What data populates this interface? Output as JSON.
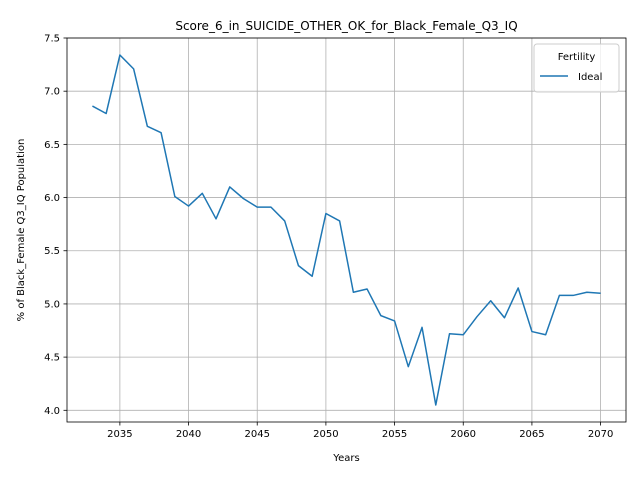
{
  "chart_data": {
    "type": "line",
    "title": "Score_6_in_SUICIDE_OTHER_OK_for_Black_Female_Q3_IQ",
    "xlabel": "Years",
    "ylabel": "% of Black_Female Q3_IQ Population",
    "xlim": [
      2031.15,
      2071.85
    ],
    "ylim": [
      3.89,
      7.5
    ],
    "xticks": [
      2035,
      2040,
      2045,
      2050,
      2055,
      2060,
      2065,
      2070
    ],
    "xtick_labels": [
      "2035",
      "2040",
      "2045",
      "2050",
      "2055",
      "2060",
      "2065",
      "2070"
    ],
    "yticks": [
      4.0,
      4.5,
      5.0,
      5.5,
      6.0,
      6.5,
      7.0,
      7.5
    ],
    "ytick_labels": [
      "4.0",
      "4.5",
      "5.0",
      "5.5",
      "6.0",
      "6.5",
      "7.0",
      "7.5"
    ],
    "grid": true,
    "legend": {
      "title": "Fertility",
      "placement": "top-right"
    },
    "series": [
      {
        "name": "Ideal",
        "color": "#1f77b4",
        "x": [
          2033,
          2034,
          2035,
          2036,
          2037,
          2038,
          2039,
          2040,
          2041,
          2042,
          2043,
          2044,
          2045,
          2046,
          2047,
          2048,
          2049,
          2050,
          2051,
          2052,
          2053,
          2054,
          2055,
          2056,
          2057,
          2058,
          2059,
          2060,
          2061,
          2062,
          2063,
          2064,
          2065,
          2066,
          2067,
          2068,
          2069,
          2070
        ],
        "y": [
          6.86,
          6.79,
          7.34,
          7.21,
          6.67,
          6.61,
          6.01,
          5.92,
          6.04,
          5.8,
          6.1,
          5.99,
          5.91,
          5.91,
          5.78,
          5.36,
          5.26,
          5.85,
          5.78,
          5.11,
          5.14,
          4.89,
          4.84,
          4.41,
          4.78,
          4.05,
          4.72,
          4.71,
          4.88,
          5.03,
          4.87,
          5.15,
          4.74,
          4.71,
          5.08,
          5.08,
          5.11,
          5.1
        ]
      }
    ]
  }
}
